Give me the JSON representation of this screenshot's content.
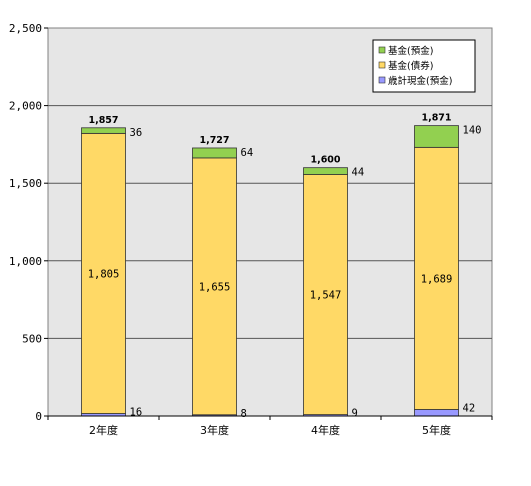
{
  "chart_data": {
    "type": "bar",
    "stacked": true,
    "title": "",
    "xlabel": "",
    "ylabel": "",
    "categories": [
      "2年度",
      "3年度",
      "4年度",
      "5年度"
    ],
    "series": [
      {
        "name": "歳計現金(預金)",
        "values": [
          16,
          8,
          9,
          42
        ],
        "labels": [
          "16",
          "8",
          "9",
          "42"
        ],
        "color": "#9999ff"
      },
      {
        "name": "基金(債券)",
        "values": [
          1805,
          1655,
          1547,
          1689
        ],
        "labels": [
          "1,805",
          "1,655",
          "1,547",
          "1,689"
        ],
        "color": "#ffd966"
      },
      {
        "name": "基金(預金)",
        "values": [
          36,
          64,
          44,
          140
        ],
        "labels": [
          "36",
          "64",
          "44",
          "140"
        ],
        "color": "#92d050"
      }
    ],
    "totals": [
      "1,857",
      "1,727",
      "1,600",
      "1,871"
    ],
    "y_ticks": [
      "0",
      "500",
      "1,000",
      "1,500",
      "2,000",
      "2,500"
    ],
    "ylim": [
      0,
      2500
    ],
    "grid": true,
    "legend_position": "top-right",
    "legend_order": [
      "基金(預金)",
      "基金(債券)",
      "歳計現金(預金)"
    ],
    "plot_background": "#e6e6e6"
  }
}
